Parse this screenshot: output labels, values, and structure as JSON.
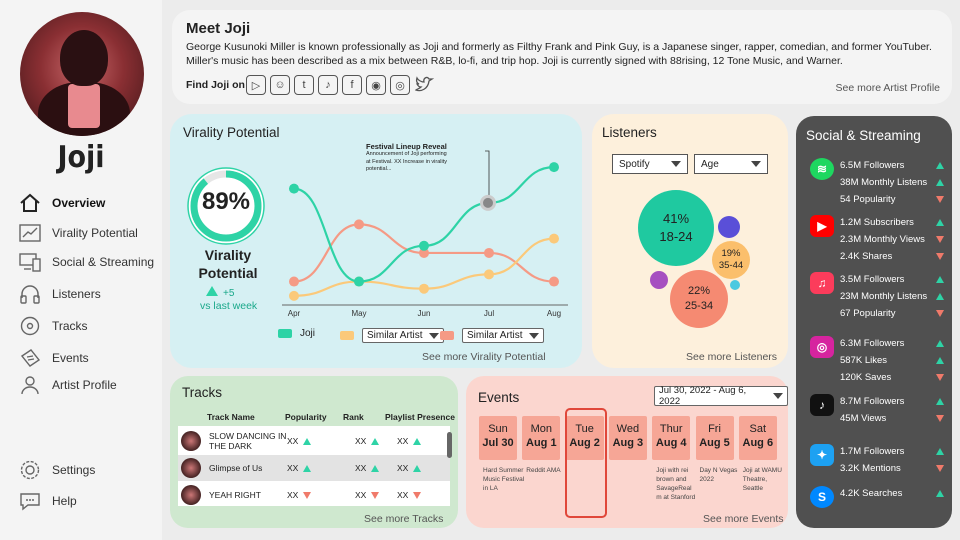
{
  "artist": {
    "name": "Joji"
  },
  "nav": [
    {
      "label": "Overview",
      "icon": "home-icon"
    },
    {
      "label": "Virality Potential",
      "icon": "trend-icon"
    },
    {
      "label": "Social & Streaming",
      "icon": "devices-icon"
    },
    {
      "label": "Listeners",
      "icon": "headphones-icon"
    },
    {
      "label": "Tracks",
      "icon": "disc-icon"
    },
    {
      "label": "Events",
      "icon": "ticket-icon"
    },
    {
      "label": "Artist Profile",
      "icon": "person-icon"
    }
  ],
  "footer_nav": [
    {
      "label": "Settings",
      "icon": "gear-icon"
    },
    {
      "label": "Help",
      "icon": "help-icon"
    }
  ],
  "about": {
    "title": "Meet Joji",
    "text": "George Kusunoki Miller is known professionally as Joji and formerly as Filthy Frank and Pink Guy, is a Japanese singer, rapper, comedian, and former YouTuber. Miller's music has been described as a mix between R&B, lo-fi, and trip hop. Joji is currently signed with 88rising, 12 Tone Music, and Warner.",
    "find_label": "Find Joji on",
    "socials": [
      "youtube-icon",
      "snapchat-icon",
      "tumblr-icon",
      "tiktok-icon",
      "facebook-icon",
      "reddit-icon",
      "instagram-icon",
      "twitter-icon"
    ],
    "more": "See more Artist Profile"
  },
  "virality": {
    "title": "Virality Potential",
    "percent": "89%",
    "percent_value": 0.89,
    "label": "Virality Potential",
    "delta": "+5",
    "delta_caption": "vs last week",
    "annotation_title": "Festival Lineup Reveal",
    "annotation_text": "Announcement of Joji performing at Festival. XX Increase in virality potential...",
    "legend_joji": "Joji",
    "legend_similar1": "Similar Artist",
    "legend_similar2": "Similar Artist",
    "more": "See more Virality Potential"
  },
  "chart_data": {
    "type": "line",
    "x": [
      "Apr",
      "May",
      "Jun",
      "Jul",
      "Aug"
    ],
    "series": [
      {
        "name": "Joji",
        "values": [
          80,
          15,
          40,
          70,
          95
        ],
        "color": "#2ed3a6"
      },
      {
        "name": "Similar Artist",
        "values": [
          5,
          15,
          10,
          20,
          45
        ],
        "color": "#fbc97a"
      },
      {
        "name": "Similar Artist",
        "values": [
          15,
          55,
          35,
          35,
          15
        ],
        "color": "#f59a85"
      }
    ],
    "ylim": [
      0,
      100
    ]
  },
  "listeners": {
    "title": "Listeners",
    "filter1": "Spotify",
    "filter2": "Age",
    "bubbles": [
      {
        "pct": "41%",
        "label": "18-24"
      },
      {
        "pct": "19%",
        "label": "35-44"
      },
      {
        "pct": "22%",
        "label": "25-34"
      }
    ],
    "more": "See more Listeners"
  },
  "social": {
    "title": "Social & Streaming",
    "groups": [
      {
        "icon": "spotify-icon",
        "color": "#1ed760",
        "stats": [
          {
            "text": "6.5M Followers",
            "trend": "up"
          },
          {
            "text": "38M Monthly Listens",
            "trend": "up"
          },
          {
            "text": "54 Popularity",
            "trend": "down"
          }
        ]
      },
      {
        "icon": "youtube-icon",
        "color": "#ff0000",
        "stats": [
          {
            "text": "1.2M Subscribers",
            "trend": "up"
          },
          {
            "text": "2.3M Monthly Views",
            "trend": "down"
          },
          {
            "text": "2.4K Shares",
            "trend": "down"
          }
        ]
      },
      {
        "icon": "apple-music-icon",
        "color": "#fb3c5b",
        "stats": [
          {
            "text": "3.5M Followers",
            "trend": "up"
          },
          {
            "text": "23M  Monthly Listens",
            "trend": "up"
          },
          {
            "text": "67 Popularity",
            "trend": "down"
          }
        ]
      },
      {
        "icon": "instagram-icon",
        "color": "#d6249f",
        "stats": [
          {
            "text": "6.3M Followers",
            "trend": "up"
          },
          {
            "text": "587K Likes",
            "trend": "up"
          },
          {
            "text": "120K Saves",
            "trend": "down"
          }
        ]
      },
      {
        "icon": "tiktok-icon",
        "color": "#111111",
        "stats": [
          {
            "text": "8.7M Followers",
            "trend": "up"
          },
          {
            "text": "45M Views",
            "trend": "down"
          }
        ]
      },
      {
        "icon": "twitter-icon",
        "color": "#1da1f2",
        "stats": [
          {
            "text": "1.7M Followers",
            "trend": "up"
          },
          {
            "text": "3.2K Mentions",
            "trend": "down"
          }
        ]
      },
      {
        "icon": "shazam-icon",
        "color": "#0088ff",
        "stats": [
          {
            "text": "4.2K Searches",
            "trend": "up"
          }
        ]
      }
    ]
  },
  "tracks": {
    "title": "Tracks",
    "headers": [
      "Track Name",
      "Popularity",
      "Rank",
      "Playlist Presence"
    ],
    "rows": [
      {
        "name": "SLOW DANCING IN THE DARK",
        "popularity": "XX",
        "pop_trend": "up",
        "rank": "XX",
        "rank_trend": "up",
        "playlist": "XX",
        "pl_trend": "up"
      },
      {
        "name": "Glimpse of Us",
        "popularity": "XX",
        "pop_trend": "up",
        "rank": "XX",
        "rank_trend": "up",
        "playlist": "XX",
        "pl_trend": "up"
      },
      {
        "name": "YEAH RIGHT",
        "popularity": "XX",
        "pop_trend": "down",
        "rank": "XX",
        "rank_trend": "down",
        "playlist": "XX",
        "pl_trend": "down"
      }
    ],
    "more": "See more Tracks"
  },
  "events": {
    "title": "Events",
    "range": "Jul 30, 2022 - Aug 6, 2022",
    "days": [
      {
        "dow": "Sun",
        "date": "Jul 30",
        "note": "Hard Summer Music Festival in LA"
      },
      {
        "dow": "Mon",
        "date": "Aug 1",
        "note": "Reddit AMA"
      },
      {
        "dow": "Tue",
        "date": "Aug 2",
        "note": ""
      },
      {
        "dow": "Wed",
        "date": "Aug 3",
        "note": ""
      },
      {
        "dow": "Thur",
        "date": "Aug 4",
        "note": "Joji with rei brown and SavageReal m at Stanford"
      },
      {
        "dow": "Fri",
        "date": "Aug 5",
        "note": "Day N Vegas 2022"
      },
      {
        "dow": "Sat",
        "date": "Aug 6",
        "note": "Joji at WAMU Theatre, Seattle"
      }
    ],
    "more": "See more Events"
  }
}
